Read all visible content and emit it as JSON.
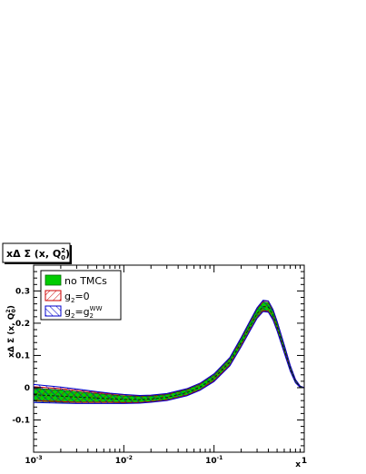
{
  "chart_data": {
    "type": "line",
    "title_box": {
      "text": "xΔ Σ (x, Q",
      "sup": "2",
      "sub": "0",
      "close": ")"
    },
    "xlabel": "x",
    "ylabel": {
      "text": "xΔ Σ (x, Q",
      "sup": "2",
      "sub": "0",
      "close": ")"
    },
    "xscale": "log",
    "xlim": [
      0.001,
      1
    ],
    "ylim": [
      -0.2,
      0.38
    ],
    "x_ticks": [
      {
        "value": 0.001,
        "base": "10",
        "exp": "-3"
      },
      {
        "value": 0.01,
        "base": "10",
        "exp": "-2"
      },
      {
        "value": 0.1,
        "base": "10",
        "exp": "-1"
      },
      {
        "value": 1,
        "base": "1",
        "exp": ""
      }
    ],
    "y_ticks": [
      {
        "value": -0.1,
        "label": "-0.1"
      },
      {
        "value": 0,
        "label": "0"
      },
      {
        "value": 0.1,
        "label": "0.1"
      },
      {
        "value": 0.2,
        "label": "0.2"
      },
      {
        "value": 0.3,
        "label": "0.3"
      }
    ],
    "grid": false,
    "legend_position": "top-left",
    "x": [
      0.001,
      0.002,
      0.003,
      0.005,
      0.007,
      0.01,
      0.015,
      0.02,
      0.03,
      0.05,
      0.07,
      0.1,
      0.15,
      0.2,
      0.25,
      0.3,
      0.35,
      0.4,
      0.45,
      0.5,
      0.6,
      0.7,
      0.8,
      0.9,
      1.0
    ],
    "series": [
      {
        "name": "no TMCs",
        "color": "#00cc00",
        "style": "solid-fill",
        "central": [
          -0.022,
          -0.026,
          -0.029,
          -0.032,
          -0.034,
          -0.036,
          -0.037,
          -0.035,
          -0.03,
          -0.015,
          0.002,
          0.03,
          0.08,
          0.14,
          0.19,
          0.23,
          0.252,
          0.25,
          0.225,
          0.19,
          0.12,
          0.06,
          0.02,
          0.003,
          0.0
        ],
        "upper": [
          -0.002,
          -0.007,
          -0.012,
          -0.018,
          -0.022,
          -0.025,
          -0.027,
          -0.026,
          -0.021,
          -0.006,
          0.011,
          0.039,
          0.09,
          0.151,
          0.202,
          0.243,
          0.266,
          0.264,
          0.238,
          0.202,
          0.13,
          0.067,
          0.024,
          0.005,
          0.0
        ],
        "lower": [
          -0.042,
          -0.045,
          -0.046,
          -0.046,
          -0.046,
          -0.047,
          -0.047,
          -0.044,
          -0.039,
          -0.024,
          -0.007,
          0.021,
          0.07,
          0.129,
          0.178,
          0.217,
          0.238,
          0.236,
          0.212,
          0.178,
          0.11,
          0.053,
          0.016,
          0.001,
          0.0
        ]
      },
      {
        "name_base": "g",
        "name_sub": "2",
        "name_rest": "=0",
        "color": "#cc0000",
        "style": "hatch",
        "upper": [
          0.003,
          -0.003,
          -0.008,
          -0.015,
          -0.019,
          -0.022,
          -0.025,
          -0.024,
          -0.019,
          -0.004,
          0.013,
          0.042,
          0.093,
          0.155,
          0.206,
          0.247,
          0.27,
          0.268,
          0.242,
          0.205,
          0.132,
          0.068,
          0.025,
          0.005,
          0.0
        ],
        "lower": [
          -0.04,
          -0.043,
          -0.045,
          -0.045,
          -0.045,
          -0.046,
          -0.046,
          -0.043,
          -0.038,
          -0.023,
          -0.006,
          0.022,
          0.071,
          0.13,
          0.179,
          0.218,
          0.239,
          0.237,
          0.213,
          0.179,
          0.111,
          0.054,
          0.017,
          0.001,
          0.0
        ]
      },
      {
        "name_base": "g",
        "name_sub": "2",
        "name_rest": "=g",
        "name_sub2": "2",
        "name_sup2": "WW",
        "color": "#0000cc",
        "style": "hatch",
        "upper": [
          0.01,
          0.002,
          -0.004,
          -0.012,
          -0.017,
          -0.021,
          -0.024,
          -0.023,
          -0.018,
          -0.003,
          0.014,
          0.043,
          0.094,
          0.156,
          0.207,
          0.248,
          0.271,
          0.269,
          0.243,
          0.206,
          0.133,
          0.069,
          0.025,
          0.005,
          0.0
        ],
        "lower": [
          -0.046,
          -0.048,
          -0.049,
          -0.049,
          -0.049,
          -0.049,
          -0.048,
          -0.045,
          -0.04,
          -0.025,
          -0.008,
          0.019,
          0.068,
          0.127,
          0.176,
          0.215,
          0.236,
          0.234,
          0.21,
          0.176,
          0.108,
          0.051,
          0.015,
          0.001,
          0.0
        ]
      }
    ]
  }
}
